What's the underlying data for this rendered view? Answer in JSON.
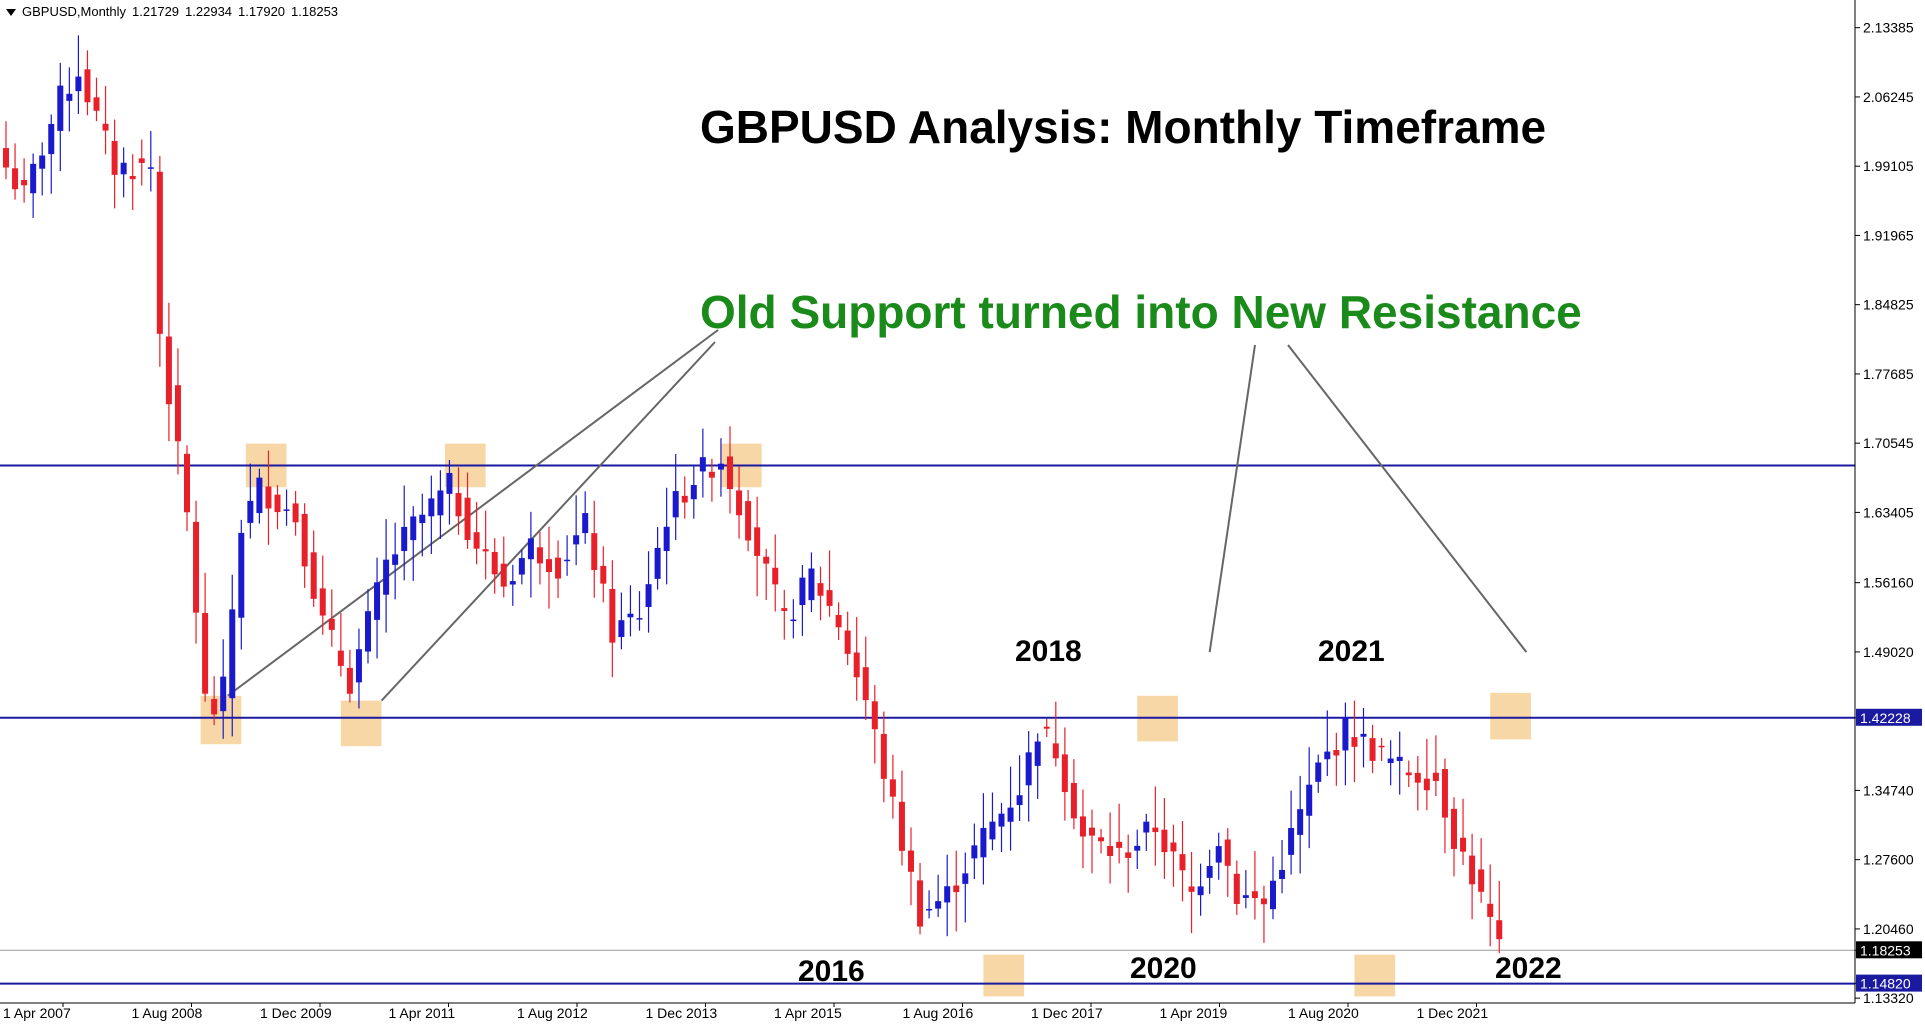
{
  "header": {
    "symbol": "GBPUSD,Monthly",
    "open": "1.21729",
    "high": "1.22934",
    "low": "1.17920",
    "close": "1.18253"
  },
  "title": "GBPUSD Analysis: Monthly Timeframe",
  "callout": "Old Support turned into New Resistance",
  "year_labels": {
    "y2018": "2018",
    "y2021": "2021",
    "y2016": "2016",
    "y2020": "2020",
    "y2022": "2022"
  },
  "colors": {
    "bull": "#1a1acc",
    "bear": "#e8202a",
    "level_line": "#1a1aa0",
    "highlight": "#f5c98a",
    "callout_text": "#1a8a1a",
    "current_price_bg": "#000000"
  },
  "chart_data": {
    "type": "candlestick",
    "timeframe": "Monthly",
    "ylim": [
      1.1282,
      2.1624
    ],
    "y_ticks": [
      "2.13385",
      "2.06245",
      "1.99105",
      "1.91965",
      "1.84825",
      "1.77685",
      "1.70545",
      "1.63405",
      "1.56160",
      "1.49020",
      "1.42228",
      "1.34740",
      "1.27600",
      "1.20460",
      "1.18253",
      "1.14820",
      "1.13320"
    ],
    "x_ticks": [
      "1 Apr 2007",
      "1 Aug 2008",
      "1 Dec 2009",
      "1 Apr 2011",
      "1 Aug 2012",
      "1 Dec 2013",
      "1 Apr 2015",
      "1 Aug 2016",
      "1 Dec 2017",
      "1 Apr 2019",
      "1 Aug 2020",
      "1 Dec 2021"
    ],
    "levels": [
      {
        "value": 1.68245,
        "label": "1.68245"
      },
      {
        "value": 1.42228,
        "label": "1.42228"
      },
      {
        "value": 1.1482,
        "label": "1.14820"
      }
    ],
    "current_price": {
      "value": 1.18253,
      "label": "1.18253"
    },
    "anchors": [
      {
        "month": 0,
        "price": 1.99
      },
      {
        "month": 2,
        "price": 1.96
      },
      {
        "month": 6,
        "price": 2.06
      },
      {
        "month": 8,
        "price": 2.09
      },
      {
        "month": 12,
        "price": 1.99
      },
      {
        "month": 16,
        "price": 1.99
      },
      {
        "month": 17,
        "price": 1.82
      },
      {
        "month": 20,
        "price": 1.63
      },
      {
        "month": 22,
        "price": 1.44
      },
      {
        "month": 23,
        "price": 1.43
      },
      {
        "month": 24,
        "price": 1.45
      },
      {
        "month": 26,
        "price": 1.62
      },
      {
        "month": 28,
        "price": 1.66
      },
      {
        "month": 32,
        "price": 1.63
      },
      {
        "month": 35,
        "price": 1.52
      },
      {
        "month": 38,
        "price": 1.46
      },
      {
        "month": 42,
        "price": 1.58
      },
      {
        "month": 45,
        "price": 1.62
      },
      {
        "month": 49,
        "price": 1.66
      },
      {
        "month": 52,
        "price": 1.6
      },
      {
        "month": 55,
        "price": 1.56
      },
      {
        "month": 58,
        "price": 1.6
      },
      {
        "month": 61,
        "price": 1.58
      },
      {
        "month": 64,
        "price": 1.62
      },
      {
        "month": 67,
        "price": 1.51
      },
      {
        "month": 70,
        "price": 1.53
      },
      {
        "month": 73,
        "price": 1.63
      },
      {
        "month": 76,
        "price": 1.67
      },
      {
        "month": 79,
        "price": 1.69
      },
      {
        "month": 82,
        "price": 1.62
      },
      {
        "month": 86,
        "price": 1.52
      },
      {
        "month": 89,
        "price": 1.57
      },
      {
        "month": 92,
        "price": 1.52
      },
      {
        "month": 95,
        "price": 1.44
      },
      {
        "month": 98,
        "price": 1.33
      },
      {
        "month": 101,
        "price": 1.22
      },
      {
        "month": 104,
        "price": 1.24
      },
      {
        "month": 108,
        "price": 1.3
      },
      {
        "month": 112,
        "price": 1.35
      },
      {
        "month": 114,
        "price": 1.41
      },
      {
        "month": 116,
        "price": 1.39
      },
      {
        "month": 119,
        "price": 1.3
      },
      {
        "month": 123,
        "price": 1.28
      },
      {
        "month": 127,
        "price": 1.31
      },
      {
        "month": 131,
        "price": 1.24
      },
      {
        "month": 134,
        "price": 1.3
      },
      {
        "month": 136,
        "price": 1.24
      },
      {
        "month": 139,
        "price": 1.23
      },
      {
        "month": 142,
        "price": 1.3
      },
      {
        "month": 145,
        "price": 1.37
      },
      {
        "month": 148,
        "price": 1.41
      },
      {
        "month": 151,
        "price": 1.39
      },
      {
        "month": 154,
        "price": 1.37
      },
      {
        "month": 158,
        "price": 1.36
      },
      {
        "month": 160,
        "price": 1.3
      },
      {
        "month": 162,
        "price": 1.26
      },
      {
        "month": 164,
        "price": 1.21
      },
      {
        "month": 165,
        "price": 1.18
      }
    ],
    "zones": [
      {
        "m1": 21.5,
        "m2": 26.0,
        "p1": 1.395,
        "p2": 1.445
      },
      {
        "m1": 37.0,
        "m2": 41.5,
        "p1": 1.393,
        "p2": 1.44
      },
      {
        "m1": 26.5,
        "m2": 31.0,
        "p1": 1.66,
        "p2": 1.705
      },
      {
        "m1": 48.5,
        "m2": 53.0,
        "p1": 1.66,
        "p2": 1.705
      },
      {
        "m1": 79.0,
        "m2": 83.5,
        "p1": 1.66,
        "p2": 1.705
      },
      {
        "m1": 125.0,
        "m2": 129.5,
        "p1": 1.398,
        "p2": 1.445
      },
      {
        "m1": 164.0,
        "m2": 168.5,
        "p1": 1.4,
        "p2": 1.448
      },
      {
        "m1": 108.0,
        "m2": 112.5,
        "p1": 1.135,
        "p2": 1.178
      },
      {
        "m1": 149.0,
        "m2": 153.5,
        "p1": 1.135,
        "p2": 1.178
      }
    ],
    "pointer_lines": [
      {
        "from": "callout_left",
        "m": 24.5,
        "p": 1.445
      },
      {
        "from": "callout_left_2",
        "m": 41.5,
        "p": 1.44
      },
      {
        "from": "callout_right_1",
        "m": 133.0,
        "p": 1.49
      },
      {
        "from": "callout_right_2",
        "m": 168.0,
        "p": 1.49
      }
    ]
  }
}
